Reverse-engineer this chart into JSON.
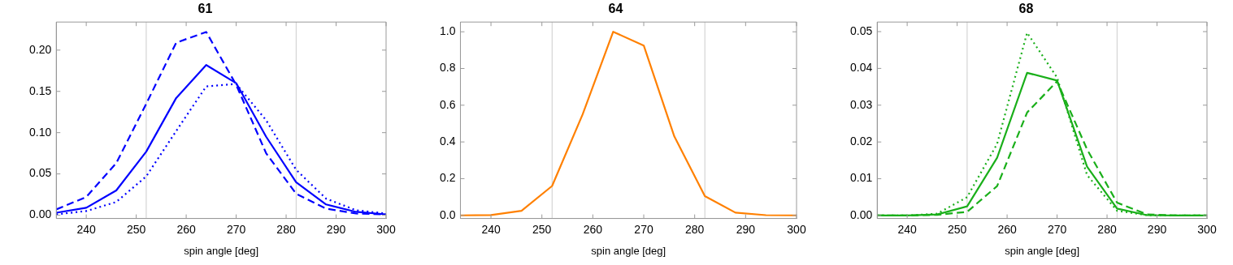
{
  "chart_data": [
    {
      "type": "line",
      "title": "61",
      "xlabel": "spin angle [deg]",
      "x": [
        234,
        240,
        246,
        252,
        258,
        264,
        270,
        276,
        282,
        288,
        294,
        300
      ],
      "series": [
        {
          "color": "#0000ff",
          "line_style": "solid",
          "values": [
            0.003,
            0.009,
            0.03,
            0.077,
            0.142,
            0.182,
            0.16,
            0.095,
            0.04,
            0.013,
            0.004,
            0.001
          ]
        },
        {
          "color": "#0000ff",
          "line_style": "dashed",
          "values": [
            0.007,
            0.022,
            0.063,
            0.135,
            0.209,
            0.222,
            0.158,
            0.075,
            0.026,
            0.008,
            0.002,
            0.001
          ]
        },
        {
          "color": "#0000ff",
          "line_style": "dotted",
          "values": [
            0.001,
            0.005,
            0.016,
            0.047,
            0.102,
            0.156,
            0.159,
            0.115,
            0.055,
            0.02,
            0.006,
            0.002
          ]
        }
      ],
      "xlim": [
        234,
        300
      ],
      "xticks": [
        240,
        250,
        260,
        270,
        280,
        290,
        300
      ],
      "ylim": [
        -0.004,
        0.234
      ],
      "yticks": [
        {
          "value": 0,
          "label": "0.00"
        },
        0.05,
        {
          "value": 0.1,
          "label": "0.10"
        },
        0.15,
        {
          "value": 0.2,
          "label": "0.20"
        }
      ],
      "ref_lines": [
        {
          "axis": "x",
          "value": 252,
          "color": "#cccccc"
        },
        {
          "axis": "x",
          "value": 282,
          "color": "#cccccc"
        }
      ],
      "legend": false,
      "grid": false,
      "marker": "none"
    },
    {
      "type": "line",
      "title": "64",
      "xlabel": "spin angle [deg]",
      "x": [
        234,
        240,
        246,
        252,
        258,
        264,
        270,
        276,
        282,
        288,
        294,
        300
      ],
      "series": [
        {
          "color": "#ff8000",
          "line_style": "solid",
          "values": [
            0,
            0.002,
            0.025,
            0.16,
            0.55,
            1.0,
            0.925,
            0.43,
            0.105,
            0.015,
            0.001,
            0
          ]
        }
      ],
      "xlim": [
        234,
        300
      ],
      "xticks": [
        240,
        250,
        260,
        270,
        280,
        290,
        300
      ],
      "ylim": [
        -0.017,
        1.053
      ],
      "yticks": [
        {
          "value": 0,
          "label": "0.0"
        },
        0.2,
        0.4,
        0.6,
        0.8,
        {
          "value": 1,
          "label": "1.0"
        }
      ],
      "ref_lines": [
        {
          "axis": "x",
          "value": 252,
          "color": "#cccccc"
        },
        {
          "axis": "x",
          "value": 282,
          "color": "#cccccc"
        }
      ],
      "legend": false,
      "grid": false,
      "marker": "none"
    },
    {
      "type": "line",
      "title": "68",
      "xlabel": "spin angle [deg]",
      "x": [
        234,
        240,
        246,
        252,
        258,
        264,
        270,
        276,
        282,
        288,
        294,
        300
      ],
      "series": [
        {
          "color": "#1aaf1a",
          "line_style": "solid",
          "values": [
            0,
            0,
            0.0003,
            0.0025,
            0.0157,
            0.0388,
            0.0367,
            0.0133,
            0.0019,
            0.0001,
            0,
            0
          ]
        },
        {
          "color": "#1aaf1a",
          "line_style": "dashed",
          "values": [
            0,
            0,
            0.0002,
            0.001,
            0.008,
            0.028,
            0.0365,
            0.018,
            0.0035,
            0.0003,
            0,
            0
          ]
        },
        {
          "color": "#1aaf1a",
          "line_style": "dotted",
          "values": [
            0,
            0,
            0.0005,
            0.005,
            0.0195,
            0.0497,
            0.0375,
            0.011,
            0.0013,
            0.0001,
            0,
            0
          ]
        }
      ],
      "xlim": [
        234,
        300
      ],
      "xticks": [
        240,
        250,
        260,
        270,
        280,
        290,
        300
      ],
      "ylim": [
        -0.0008,
        0.0526
      ],
      "yticks": [
        {
          "value": 0,
          "label": "0.00"
        },
        0.01,
        0.02,
        0.03,
        0.04,
        0.05
      ],
      "ref_lines": [
        {
          "axis": "x",
          "value": 252,
          "color": "#cccccc"
        },
        {
          "axis": "x",
          "value": 282,
          "color": "#cccccc"
        }
      ],
      "legend": false,
      "grid": false,
      "marker": "none"
    }
  ]
}
